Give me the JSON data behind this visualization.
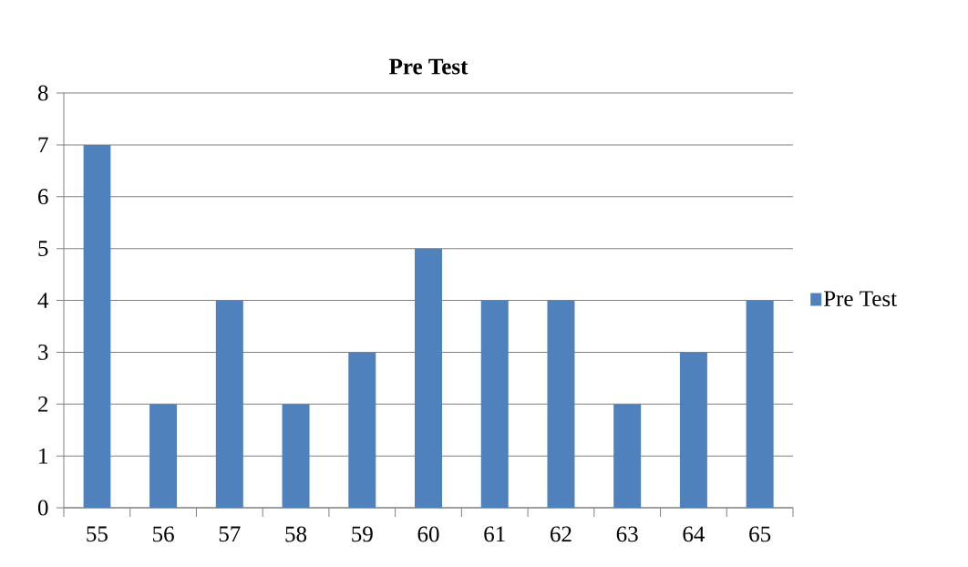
{
  "chart_data": {
    "type": "bar",
    "title": "Pre Test",
    "categories": [
      "55",
      "56",
      "57",
      "58",
      "59",
      "60",
      "61",
      "62",
      "63",
      "64",
      "65"
    ],
    "series": [
      {
        "name": "Pre Test",
        "color": "#4f81bd",
        "values": [
          7,
          2,
          4,
          2,
          3,
          5,
          4,
          4,
          2,
          3,
          4
        ]
      }
    ],
    "ylim": [
      0,
      8
    ],
    "yticks": [
      0,
      1,
      2,
      3,
      4,
      5,
      6,
      7,
      8
    ],
    "grid": "y",
    "legend": "right"
  }
}
